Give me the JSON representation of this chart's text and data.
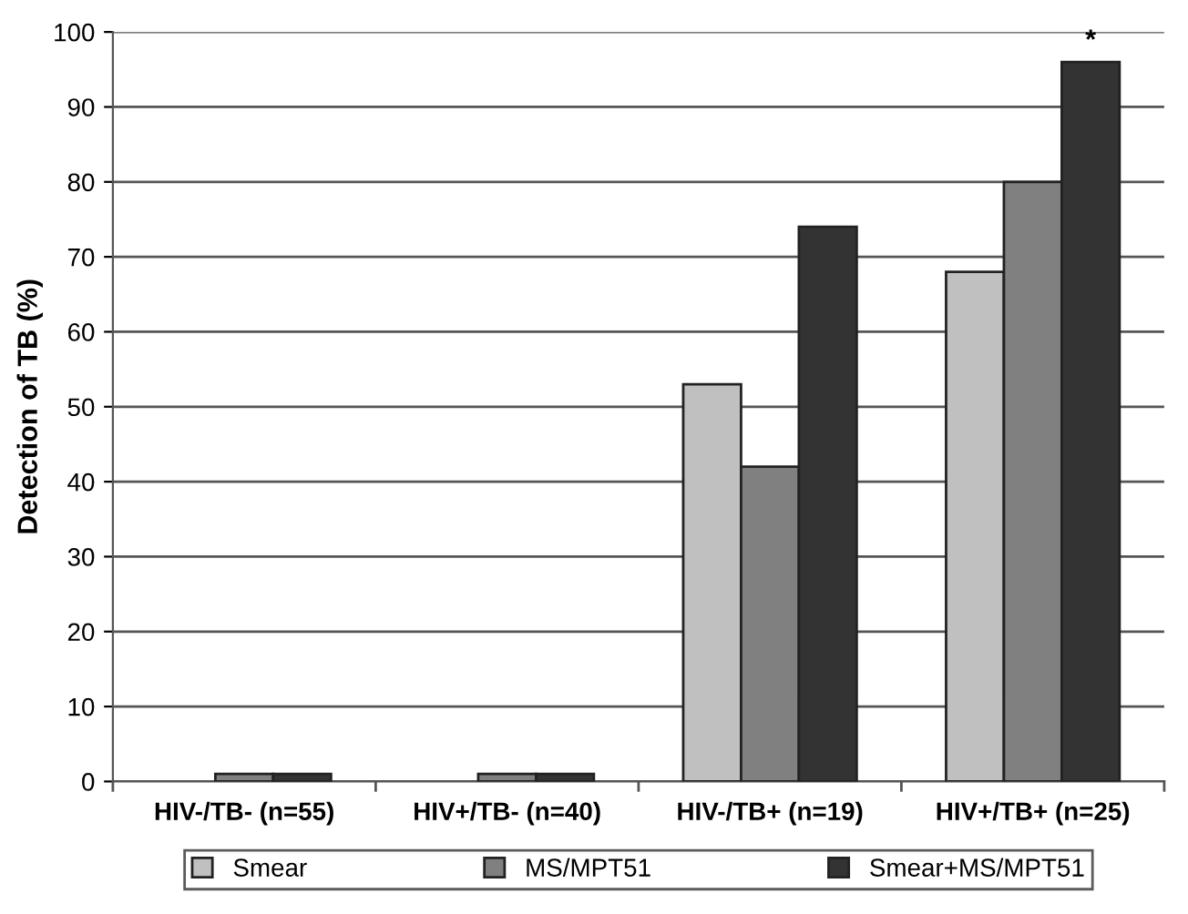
{
  "chart_data": {
    "type": "bar",
    "ylabel": "Detection of TB (%)",
    "categories": [
      "HIV-/TB- (n=55)",
      "HIV+/TB- (n=40)",
      "HIV-/TB+ (n=19)",
      "HIV+/TB+ (n=25)"
    ],
    "series": [
      {
        "name": "Smear",
        "color": "#c0c0c0",
        "values": [
          0,
          0,
          53,
          68
        ]
      },
      {
        "name": "MS/MPT51",
        "color": "#808080",
        "values": [
          1,
          1,
          42,
          80
        ]
      },
      {
        "name": "Smear+MS/MPT51",
        "color": "#333333",
        "values": [
          1,
          1,
          74,
          96
        ]
      }
    ],
    "ylim": [
      0,
      100
    ],
    "yticks": [
      0,
      10,
      20,
      30,
      40,
      50,
      60,
      70,
      80,
      90,
      100
    ],
    "grid": "y",
    "legend": "bottom",
    "annotations": [
      "*"
    ]
  }
}
